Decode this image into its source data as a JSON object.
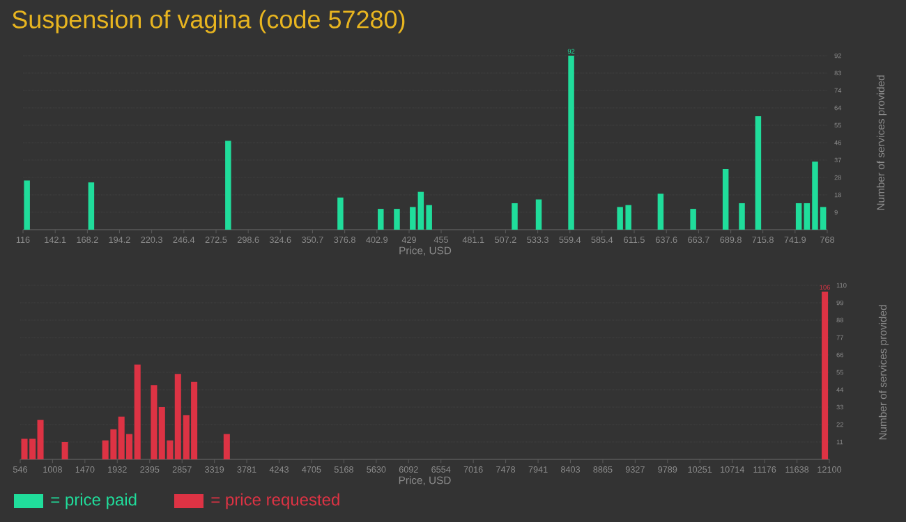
{
  "chart_data": [
    {
      "type": "bar",
      "title": "Suspension of vagina (code 57280)",
      "xlabel": "Price, USD",
      "ylabel": "Number of services provided",
      "xlim": [
        116,
        768
      ],
      "ylim": [
        0,
        92
      ],
      "xticks": [
        116,
        142.1,
        168.2,
        194.2,
        220.3,
        246.4,
        272.5,
        298.6,
        324.6,
        350.7,
        376.8,
        402.9,
        429,
        455,
        481.1,
        507.2,
        533.3,
        559.4,
        585.4,
        611.5,
        637.6,
        663.7,
        689.8,
        715.8,
        741.9,
        768
      ],
      "yticks": [
        {
          "value": 9.2,
          "label": "9"
        },
        {
          "value": 18.4,
          "label": "18"
        },
        {
          "value": 27.6,
          "label": "28"
        },
        {
          "value": 36.8,
          "label": "37"
        },
        {
          "value": 46,
          "label": "46"
        },
        {
          "value": 55.2,
          "label": "55"
        },
        {
          "value": 64.4,
          "label": "64"
        },
        {
          "value": 73.6,
          "label": "74"
        },
        {
          "value": 82.8,
          "label": "83"
        },
        {
          "value": 92,
          "label": "92"
        }
      ],
      "grid": "y",
      "legend": "bottom left",
      "x": [
        119.2,
        171.3,
        282.3,
        373.3,
        406.0,
        419.1,
        432.0,
        438.5,
        445.2,
        514.6,
        534.1,
        560.4,
        600.0,
        606.8,
        632.9,
        659.3,
        685.6,
        698.8,
        712.0,
        744.9,
        751.5,
        758.1,
        764.7
      ],
      "series": [
        {
          "name": "= price paid",
          "color": "#20dd9b",
          "values": [
            26,
            25,
            47,
            17,
            11,
            11,
            12,
            20,
            13,
            14,
            16,
            92,
            12,
            13,
            19,
            11,
            32,
            14,
            60,
            14,
            14,
            36,
            12
          ],
          "value_labels": [
            null,
            null,
            null,
            null,
            null,
            null,
            null,
            null,
            null,
            null,
            null,
            "92",
            null,
            null,
            null,
            null,
            null,
            null,
            null,
            null,
            null,
            null,
            null
          ]
        }
      ]
    },
    {
      "type": "bar",
      "xlabel": "Price, USD",
      "ylabel": "Number of services provided",
      "xlim": [
        546,
        12100
      ],
      "ylim": [
        0,
        110
      ],
      "xticks": [
        546,
        1008,
        1470,
        1932,
        2395,
        2857,
        3319,
        3781,
        4243,
        4705,
        5168,
        5630,
        6092,
        6554,
        7016,
        7478,
        7941,
        8403,
        8865,
        9327,
        9789,
        10251,
        10714,
        11176,
        11638,
        12100
      ],
      "yticks": [
        11,
        22,
        33,
        44,
        55,
        66,
        77,
        88,
        99,
        110
      ],
      "grid": "y",
      "legend": "bottom left",
      "x": [
        606,
        722,
        835,
        1184,
        1762,
        1878,
        1991,
        2104,
        2220,
        2456,
        2569,
        2685,
        2798,
        2918,
        3030,
        3495,
        12036
      ],
      "series": [
        {
          "name": "= price requested",
          "color": "#dd3344",
          "values": [
            13,
            13,
            25,
            11,
            12,
            19,
            27,
            16,
            60,
            47,
            33,
            12,
            54,
            28,
            49,
            16,
            106
          ],
          "value_labels": [
            null,
            null,
            null,
            null,
            null,
            null,
            null,
            null,
            null,
            null,
            null,
            null,
            null,
            null,
            null,
            null,
            "106"
          ]
        }
      ]
    }
  ]
}
